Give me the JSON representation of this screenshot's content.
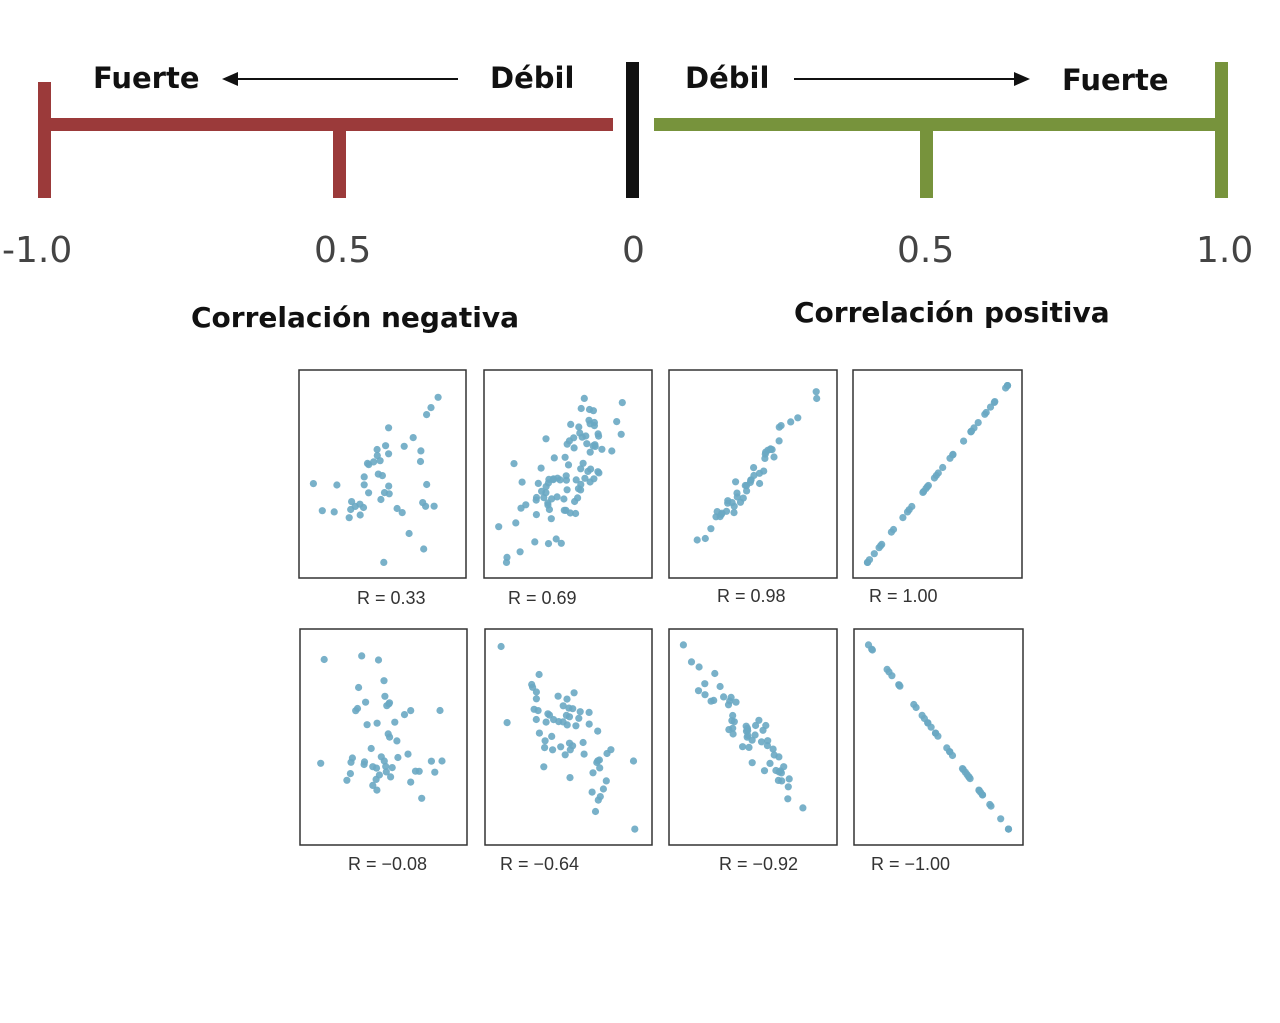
{
  "scale": {
    "negative": {
      "strong_label": "Fuerte",
      "weak_label": "Débil",
      "title": "Correlación negativa",
      "color": "#9b3a3a"
    },
    "positive": {
      "strong_label": "Fuerte",
      "weak_label": "Débil",
      "title": "Correlación positiva",
      "color": "#77933c"
    },
    "zero_color": "#111111",
    "ticks": [
      "-1.0",
      "0.5",
      "0",
      "0.5",
      "1.0"
    ]
  },
  "chart_data": [
    {
      "type": "scatter",
      "caption": "R = 0.33",
      "r": 0.33
    },
    {
      "type": "scatter",
      "caption": "R = 0.69",
      "r": 0.69
    },
    {
      "type": "scatter",
      "caption": "R = 0.98",
      "r": 0.98
    },
    {
      "type": "scatter",
      "caption": "R = 1.00",
      "r": 1.0
    },
    {
      "type": "scatter",
      "caption": "R = −0.08",
      "r": -0.08
    },
    {
      "type": "scatter",
      "caption": "R = −0.64",
      "r": -0.64
    },
    {
      "type": "scatter",
      "caption": "R = −0.92",
      "r": -0.92
    },
    {
      "type": "scatter",
      "caption": "R = −1.00",
      "r": -1.0
    }
  ],
  "point_color": "#6aa9c3"
}
